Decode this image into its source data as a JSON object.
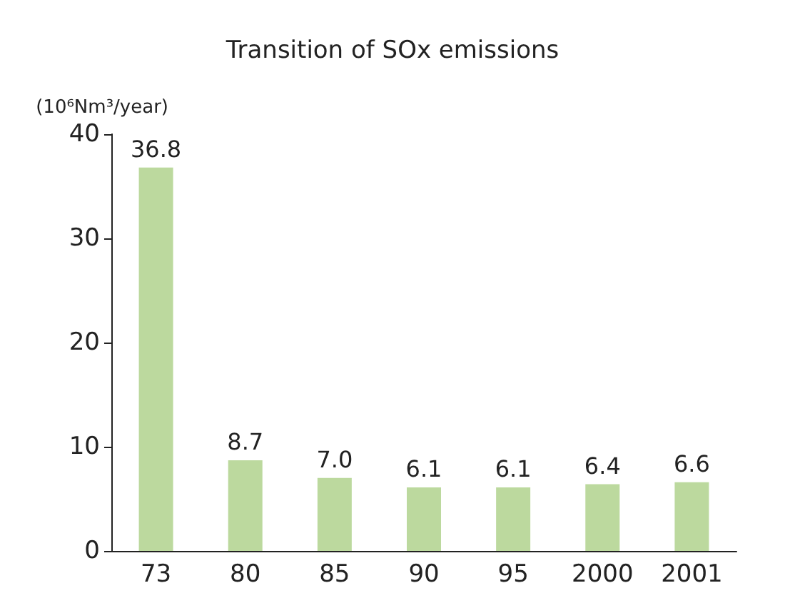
{
  "chart_data": {
    "type": "bar",
    "title": "Transition of SOx emissions",
    "ylabel": "(10⁶Nm³/year)",
    "categories": [
      "73",
      "80",
      "85",
      "90",
      "95",
      "2000",
      "2001"
    ],
    "values": [
      36.8,
      8.7,
      7.0,
      6.1,
      6.1,
      6.4,
      6.6
    ],
    "value_labels": [
      "36.8",
      "8.7",
      "7.0",
      "6.1",
      "6.1",
      "6.4",
      "6.6"
    ],
    "color": "#bcd99e",
    "ylim": [
      0,
      40
    ],
    "yticks": [
      0,
      10,
      20,
      30,
      40
    ],
    "grid": false
  }
}
